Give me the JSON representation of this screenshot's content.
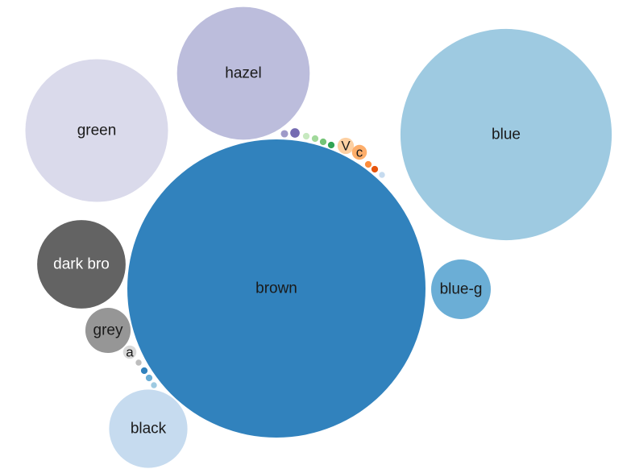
{
  "chart_data": {
    "type": "bubble",
    "title": "",
    "xlabel": "",
    "ylabel": "",
    "grid": false,
    "legend": "none",
    "bubbles": [
      {
        "label": "brown",
        "value": 100,
        "color": "#3182bd",
        "text_color": "#1a1a1a"
      },
      {
        "label": "blue",
        "value": 50.2,
        "color": "#9ecae1",
        "text_color": "#1a1a1a"
      },
      {
        "label": "green",
        "value": 22.9,
        "color": "#dadaeb",
        "text_color": "#1a1a1a"
      },
      {
        "label": "hazel",
        "value": 19.8,
        "color": "#bcbddc",
        "text_color": "#1a1a1a"
      },
      {
        "label": "dark bro",
        "value": 8.8,
        "color": "#636363",
        "text_color": "#ffffff"
      },
      {
        "label": "blue-g",
        "value": 4.0,
        "color": "#6baed6",
        "text_color": "#1a1a1a"
      },
      {
        "label": "black",
        "value": 6.9,
        "color": "#c6dbef",
        "text_color": "#1a1a1a"
      },
      {
        "label": "grey",
        "value": 2.3,
        "color": "#969696",
        "text_color": "#1a1a1a"
      },
      {
        "label": "V",
        "value": 0.3,
        "color": "#fdd0a2",
        "text_color": "#1a1a1a"
      },
      {
        "label": "c",
        "value": 0.25,
        "color": "#fdae6b",
        "text_color": "#1a1a1a"
      },
      {
        "label": "a",
        "value": 0.2,
        "color": "#d9d9d9",
        "text_color": "#1a1a1a"
      },
      {
        "label": "",
        "value": 0.06,
        "color": "#9e9ac8",
        "text_color": "#1a1a1a"
      },
      {
        "label": "",
        "value": 0.1,
        "color": "#756bb1",
        "text_color": "#1a1a1a"
      },
      {
        "label": "",
        "value": 0.05,
        "color": "#c7e9c0",
        "text_color": "#1a1a1a"
      },
      {
        "label": "",
        "value": 0.05,
        "color": "#a1d99b",
        "text_color": "#1a1a1a"
      },
      {
        "label": "",
        "value": 0.05,
        "color": "#74c476",
        "text_color": "#1a1a1a"
      },
      {
        "label": "",
        "value": 0.05,
        "color": "#31a354",
        "text_color": "#1a1a1a"
      },
      {
        "label": "",
        "value": 0.05,
        "color": "#fd8d3c",
        "text_color": "#1a1a1a"
      },
      {
        "label": "",
        "value": 0.05,
        "color": "#e6550d",
        "text_color": "#1a1a1a"
      },
      {
        "label": "",
        "value": 0.04,
        "color": "#c6dbef",
        "text_color": "#1a1a1a"
      },
      {
        "label": "",
        "value": 0.04,
        "color": "#bdbdbd",
        "text_color": "#1a1a1a"
      },
      {
        "label": "",
        "value": 0.05,
        "color": "#3182bd",
        "text_color": "#1a1a1a"
      },
      {
        "label": "",
        "value": 0.05,
        "color": "#6baed6",
        "text_color": "#1a1a1a"
      },
      {
        "label": "",
        "value": 0.04,
        "color": "#9ecae1",
        "text_color": "#1a1a1a"
      }
    ]
  }
}
